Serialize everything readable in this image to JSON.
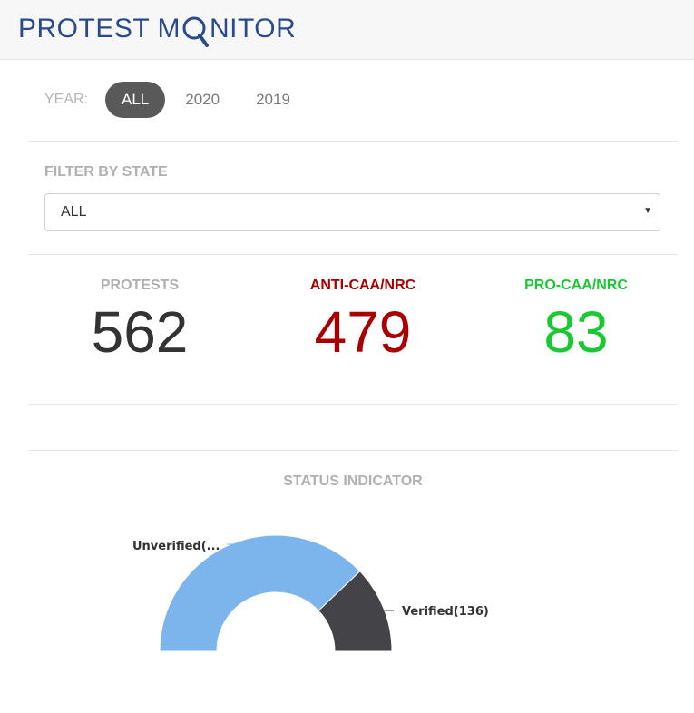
{
  "header": {
    "logo_left": "PROTEST M",
    "logo_right": "NITOR",
    "logo_full": "PROTEST MONITOR"
  },
  "year_filter": {
    "label": "YEAR:",
    "options": [
      "ALL",
      "2020",
      "2019"
    ],
    "selected": "ALL"
  },
  "state_filter": {
    "label": "FILTER BY STATE",
    "value": "ALL"
  },
  "stats": {
    "protests": {
      "label": "PROTESTS",
      "value": "562",
      "color": "#333333"
    },
    "anti": {
      "label": "ANTI-CAA/NRC",
      "value": "479",
      "color": "#a80000"
    },
    "pro": {
      "label": "PRO-CAA/NRC",
      "value": "83",
      "color": "#19c832"
    }
  },
  "status": {
    "title": "STATUS INDICATOR"
  },
  "colors": {
    "accent": "#2b4a8c",
    "unverified": "#7cb5ec",
    "verified": "#434348"
  },
  "chart_data": {
    "type": "pie",
    "title": "STATUS INDICATOR",
    "categories": [
      "Unverified",
      "Verified"
    ],
    "values": [
      426,
      136
    ],
    "labels": [
      "Unverified(...",
      "Verified(136)"
    ]
  }
}
